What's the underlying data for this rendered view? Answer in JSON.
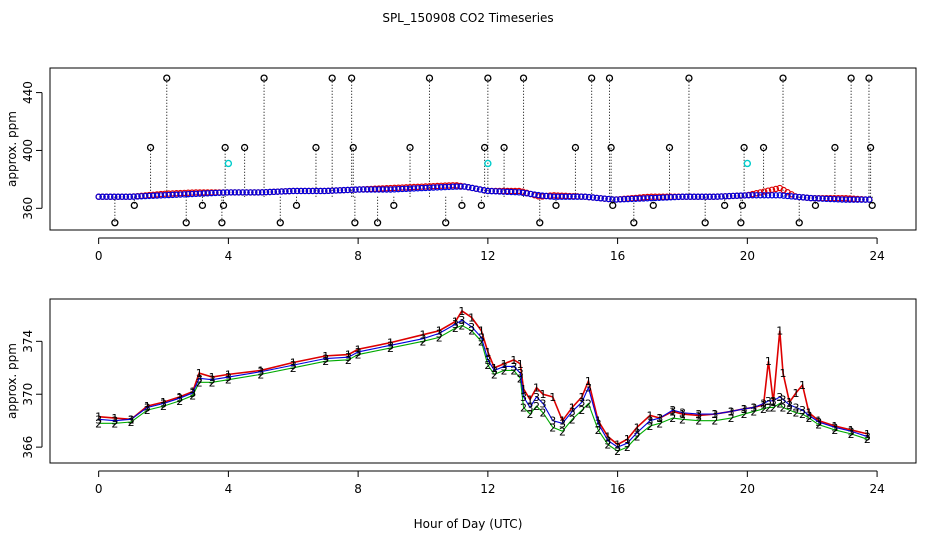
{
  "title": "SPL_150908  CO2 Timeseries",
  "xlabel": "Hour of Day (UTC)",
  "colors": {
    "black": "#000000",
    "red": "#dd0000",
    "blue": "#0000dd",
    "green": "#00aa00",
    "cyan": "#00cccc"
  },
  "chart_data": [
    {
      "type": "scatter",
      "panel": "top",
      "ylabel": "approx. ppm",
      "xlim": [
        -1.5,
        25.2
      ],
      "ylim": [
        345,
        457
      ],
      "xticks": [
        0,
        4,
        8,
        12,
        16,
        20,
        24
      ],
      "yticks": [
        360,
        400,
        440
      ],
      "baseline_series": [
        {
          "name": "red",
          "color": "#dd0000",
          "x": [
            0,
            1,
            2,
            3,
            4,
            5,
            6,
            7,
            8,
            9,
            10,
            11,
            11.3,
            12,
            13,
            13.6,
            14,
            15,
            15.9,
            17,
            18,
            19,
            20,
            20.6,
            21,
            21.5,
            22,
            23,
            23.7
          ],
          "y": [
            368,
            368,
            370,
            371,
            371,
            371,
            372,
            372,
            373,
            374,
            375,
            376,
            375,
            372,
            372,
            368,
            369,
            368,
            366,
            368,
            368,
            368,
            369,
            372,
            374,
            368,
            367,
            367,
            366
          ]
        },
        {
          "name": "blue",
          "color": "#0000dd",
          "x": [
            0,
            1,
            2,
            3,
            4,
            5,
            6,
            7,
            8,
            9,
            10,
            11,
            11.3,
            12,
            13,
            13.6,
            14,
            15,
            15.9,
            17,
            18,
            19,
            20,
            20.6,
            21,
            21.5,
            22,
            23,
            23.7
          ],
          "y": [
            368,
            368,
            369,
            370,
            371,
            371,
            372,
            372,
            373,
            373,
            374,
            375,
            375,
            372,
            371,
            369,
            368,
            368,
            366,
            367,
            368,
            368,
            369,
            369,
            369,
            368,
            367,
            366,
            366
          ]
        }
      ],
      "spikes": {
        "color": "#000000",
        "x": [
          0.5,
          1.1,
          1.6,
          2.1,
          2.7,
          3.2,
          3.8,
          3.85,
          3.9,
          4.5,
          5.1,
          5.6,
          6.1,
          6.7,
          7.2,
          7.8,
          7.85,
          7.9,
          8.6,
          9.1,
          9.6,
          10.2,
          10.7,
          11.2,
          11.8,
          11.9,
          12.0,
          12.5,
          13.1,
          13.6,
          14.1,
          14.7,
          15.2,
          15.75,
          15.8,
          15.85,
          16.5,
          17.1,
          17.6,
          18.2,
          18.7,
          19.3,
          19.8,
          19.85,
          19.9,
          20.5,
          21.1,
          21.6,
          22.1,
          22.7,
          23.2,
          23.75,
          23.8,
          23.85
        ],
        "y": [
          350,
          362,
          402,
          450,
          350,
          362,
          350,
          362,
          402,
          402,
          450,
          350,
          362,
          402,
          450,
          450,
          402,
          350,
          350,
          362,
          402,
          450,
          350,
          362,
          362,
          402,
          450,
          402,
          450,
          350,
          362,
          402,
          450,
          450,
          402,
          362,
          350,
          362,
          402,
          450,
          350,
          362,
          350,
          362,
          402,
          402,
          450,
          350,
          362,
          402,
          450,
          450,
          402,
          362
        ]
      },
      "cyan_points": {
        "color": "#00cccc",
        "x": [
          4.0,
          12.0,
          20.0
        ],
        "y": [
          391,
          391,
          391
        ]
      }
    },
    {
      "type": "line",
      "panel": "bottom",
      "ylabel": "approx. ppm",
      "xlim": [
        -1.5,
        25.2
      ],
      "ylim": [
        364.8,
        377.2
      ],
      "xticks": [
        0,
        4,
        8,
        12,
        16,
        20,
        24
      ],
      "yticks": [
        366,
        370,
        374
      ],
      "series": [
        {
          "name": "1",
          "marker": "1",
          "color": "#dd0000",
          "x": [
            0,
            0.5,
            1,
            1.5,
            2,
            2.5,
            2.9,
            3.1,
            3.5,
            4,
            5,
            6,
            7,
            7.7,
            8,
            9,
            10,
            10.5,
            11,
            11.2,
            11.5,
            11.8,
            12,
            12.2,
            12.5,
            12.8,
            13,
            13.1,
            13.3,
            13.5,
            13.7,
            14,
            14.3,
            14.6,
            14.9,
            15.1,
            15.4,
            15.7,
            16,
            16.3,
            16.6,
            17,
            17.3,
            17.7,
            18,
            18.5,
            19,
            19.5,
            19.9,
            20.2,
            20.5,
            20.65,
            20.8,
            21,
            21.1,
            21.3,
            21.5,
            21.7,
            21.9,
            22.2,
            22.7,
            23.2,
            23.7
          ],
          "y": [
            368.3,
            368.2,
            368.1,
            369.1,
            369.4,
            369.8,
            370.2,
            371.6,
            371.3,
            371.5,
            371.8,
            372.4,
            372.9,
            373.0,
            373.4,
            373.9,
            374.5,
            374.8,
            375.5,
            376.3,
            375.8,
            374.8,
            373.2,
            372.0,
            372.3,
            372.6,
            372.3,
            370.4,
            369.6,
            370.5,
            370.0,
            369.8,
            368.0,
            369.0,
            369.8,
            371.0,
            368.0,
            366.8,
            366.2,
            366.6,
            367.5,
            368.4,
            368.2,
            368.7,
            368.5,
            368.4,
            368.5,
            368.7,
            368.9,
            369.0,
            369.2,
            372.5,
            369.4,
            374.8,
            371.6,
            369.4,
            370.1,
            370.7,
            368.6,
            368.0,
            367.6,
            367.3,
            367.0
          ]
        },
        {
          "name": "2",
          "marker": "2",
          "color": "#00aa00",
          "x": [
            0,
            0.5,
            1,
            1.5,
            2,
            2.5,
            2.9,
            3.1,
            3.5,
            4,
            5,
            6,
            7,
            7.7,
            8,
            9,
            10,
            10.5,
            11,
            11.2,
            11.5,
            11.8,
            12,
            12.2,
            12.5,
            12.8,
            13,
            13.1,
            13.3,
            13.5,
            13.7,
            14,
            14.3,
            14.6,
            14.9,
            15.1,
            15.4,
            15.7,
            16,
            16.3,
            16.6,
            17,
            17.3,
            17.7,
            18,
            18.5,
            19,
            19.5,
            19.9,
            20.2,
            20.5,
            20.65,
            20.8,
            21,
            21.1,
            21.3,
            21.5,
            21.7,
            21.9,
            22.2,
            22.7,
            23.2,
            23.7
          ],
          "y": [
            367.8,
            367.8,
            367.9,
            368.8,
            369.1,
            369.5,
            369.9,
            370.9,
            370.9,
            371.1,
            371.5,
            372.0,
            372.5,
            372.6,
            373.0,
            373.5,
            374.0,
            374.3,
            375.0,
            375.2,
            374.8,
            374.0,
            372.2,
            371.5,
            371.8,
            371.8,
            371.2,
            369.0,
            368.5,
            369.1,
            368.6,
            367.5,
            367.2,
            368.1,
            368.8,
            369.3,
            367.3,
            366.2,
            365.7,
            366.0,
            366.8,
            367.6,
            367.8,
            368.2,
            368.1,
            368.0,
            368.0,
            368.2,
            368.5,
            368.7,
            368.9,
            369.0,
            369.0,
            369.3,
            369.0,
            368.8,
            368.6,
            368.5,
            368.2,
            367.7,
            367.3,
            367.0,
            366.6
          ]
        },
        {
          "name": "3",
          "marker": "3",
          "color": "#0000dd",
          "x": [
            0,
            0.5,
            1,
            1.5,
            2,
            2.5,
            2.9,
            3.1,
            3.5,
            4,
            5,
            6,
            7,
            7.7,
            8,
            9,
            10,
            10.5,
            11,
            11.2,
            11.5,
            11.8,
            12,
            12.2,
            12.5,
            12.8,
            13,
            13.1,
            13.3,
            13.5,
            13.7,
            14,
            14.3,
            14.6,
            14.9,
            15.1,
            15.4,
            15.7,
            16,
            16.3,
            16.6,
            17,
            17.3,
            17.7,
            18,
            18.5,
            19,
            19.5,
            19.9,
            20.2,
            20.5,
            20.65,
            20.8,
            21,
            21.1,
            21.3,
            21.5,
            21.7,
            21.9,
            22.2,
            22.7,
            23.2,
            23.7
          ],
          "y": [
            368.1,
            368.0,
            368.1,
            369.0,
            369.3,
            369.7,
            370.1,
            371.2,
            371.1,
            371.3,
            371.7,
            372.2,
            372.7,
            372.8,
            373.2,
            373.7,
            374.2,
            374.6,
            375.3,
            375.6,
            375.1,
            374.3,
            372.6,
            371.8,
            372.1,
            372.1,
            371.6,
            369.8,
            369.0,
            369.8,
            369.3,
            368.0,
            367.8,
            368.7,
            369.4,
            370.5,
            367.8,
            366.5,
            366.0,
            366.3,
            367.1,
            368.0,
            368.2,
            368.8,
            368.6,
            368.5,
            368.5,
            368.7,
            368.9,
            369.0,
            369.3,
            369.5,
            369.5,
            369.8,
            369.6,
            369.2,
            369.0,
            368.8,
            368.4,
            367.9,
            367.5,
            367.2,
            366.8
          ]
        }
      ]
    }
  ]
}
